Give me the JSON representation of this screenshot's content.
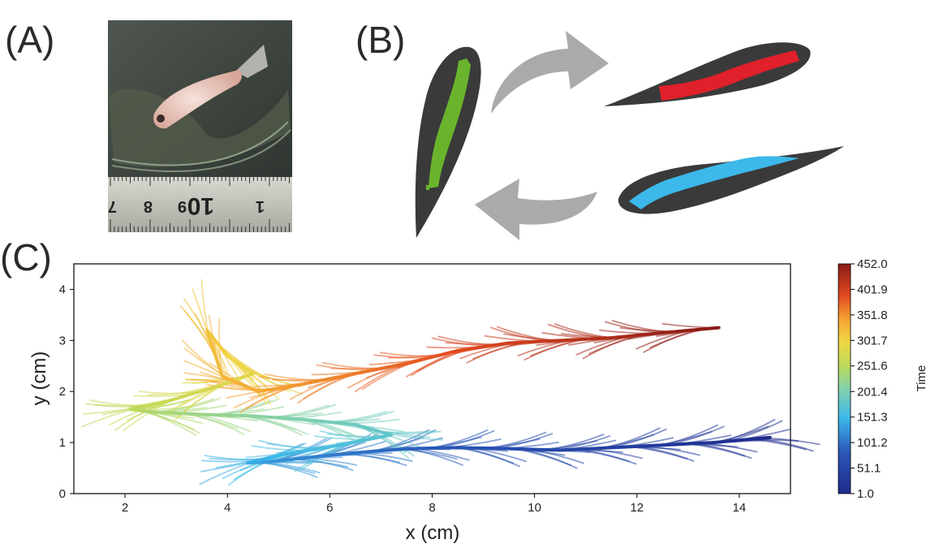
{
  "panels": {
    "a": "(A)",
    "b": "(B)",
    "c": "(C)"
  },
  "photo": {
    "ruler_numbers": [
      "7",
      "8",
      "9",
      "10",
      "1"
    ]
  },
  "colors": {
    "green": "#6ab42d",
    "red": "#e0202a",
    "blue": "#3cb8ea",
    "body": "#3a3a3a",
    "arrow": "#aaaaaa"
  },
  "chart_data": {
    "type": "line",
    "title": "",
    "xlabel": "x   (cm)",
    "ylabel": "y   (cm)",
    "xlim": [
      1,
      15
    ],
    "ylim": [
      0,
      4.5
    ],
    "xticks": [
      2,
      4,
      6,
      8,
      10,
      12,
      14
    ],
    "yticks": [
      0,
      1,
      2,
      3,
      4
    ],
    "grid": false,
    "colorbar": {
      "label": "Time",
      "min": 1.0,
      "max": 452.0,
      "ticks": [
        "452.0",
        "401.9",
        "351.8",
        "301.7",
        "251.6",
        "201.4",
        "151.3",
        "101.2",
        "51.1",
        "1.0"
      ]
    },
    "trajectory": {
      "description_units": "cm",
      "x": [
        14.6,
        13.5,
        12.5,
        11.5,
        10.5,
        9.5,
        8.5,
        7.5,
        6.5,
        5.5,
        4.8,
        4.4,
        5.0,
        6.2,
        7.2,
        6.5,
        5.5,
        4.5,
        3.5,
        2.5,
        2.1,
        2.8,
        3.8,
        4.5,
        4.0,
        3.6,
        3.9,
        4.6,
        5.5,
        6.5,
        7.5,
        8.5,
        9.5,
        10.5,
        11.5,
        12.5,
        13.6
      ],
      "y": [
        1.1,
        1.0,
        0.95,
        0.9,
        0.85,
        0.88,
        0.9,
        0.88,
        0.8,
        0.7,
        0.62,
        0.6,
        0.75,
        0.95,
        1.15,
        1.35,
        1.45,
        1.52,
        1.55,
        1.6,
        1.65,
        1.8,
        2.1,
        2.35,
        2.7,
        3.2,
        2.3,
        2.0,
        2.15,
        2.35,
        2.55,
        2.8,
        2.95,
        3.0,
        3.05,
        3.15,
        3.25
      ],
      "time": [
        1,
        13,
        26,
        38,
        51,
        63,
        76,
        88,
        101,
        113,
        126,
        138,
        151,
        163,
        176,
        188,
        201,
        213,
        226,
        238,
        251,
        263,
        276,
        288,
        301,
        313,
        326,
        338,
        351,
        363,
        376,
        388,
        401,
        414,
        426,
        439,
        452
      ]
    }
  }
}
